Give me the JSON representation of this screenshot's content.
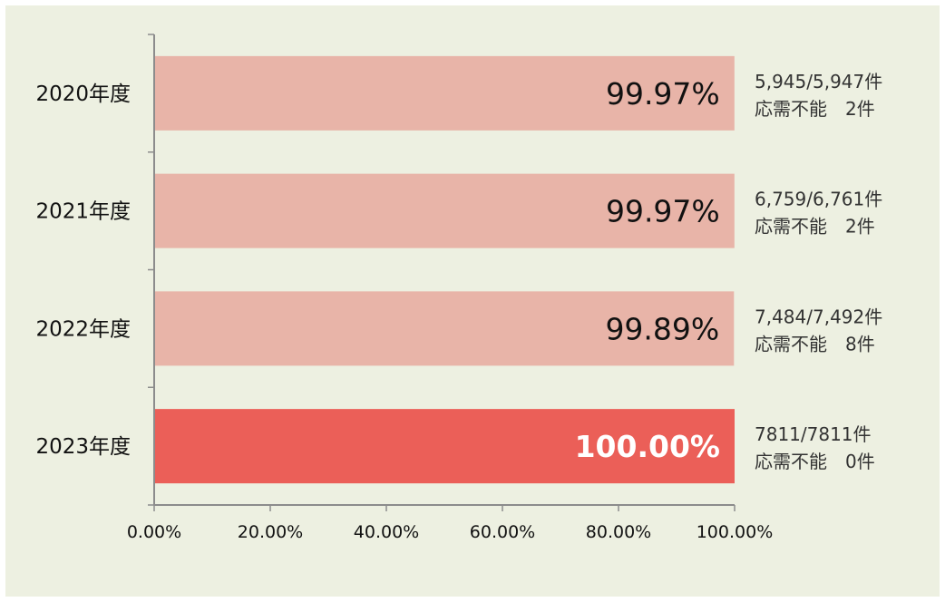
{
  "chart_data": {
    "type": "bar",
    "orientation": "horizontal",
    "categories": [
      "2020年度",
      "2021年度",
      "2022年度",
      "2023年度"
    ],
    "values": [
      99.97,
      99.97,
      99.89,
      100.0
    ],
    "data_labels": [
      "99.97%",
      "99.97%",
      "99.89%",
      "100.00%"
    ],
    "annotations": [
      {
        "line1": "5,945/5,947件",
        "line2": "応需不能　2件"
      },
      {
        "line1": "6,759/6,761件",
        "line2": "応需不能　2件"
      },
      {
        "line1": "7,484/7,492件",
        "line2": "応需不能　8件"
      },
      {
        "line1": "7811/7811件",
        "line2": "応需不能　0件"
      }
    ],
    "xlim": [
      0,
      100
    ],
    "x_ticks": [
      0,
      20,
      40,
      60,
      80,
      100
    ],
    "x_tick_labels": [
      "0.00%",
      "20.00%",
      "40.00%",
      "60.00%",
      "80.00%",
      "100.00%"
    ],
    "title": "",
    "xlabel": "",
    "ylabel": "",
    "grid": false,
    "highlight_index": 3,
    "colors": {
      "background": "#edf0e1",
      "bar": "#e8b4a8",
      "bar_highlight": "#eb5f58",
      "axis": "#8c8c8c",
      "label_dark": "#111111",
      "label_highlight": "#ffffff",
      "annotation_text": "#333333"
    }
  }
}
